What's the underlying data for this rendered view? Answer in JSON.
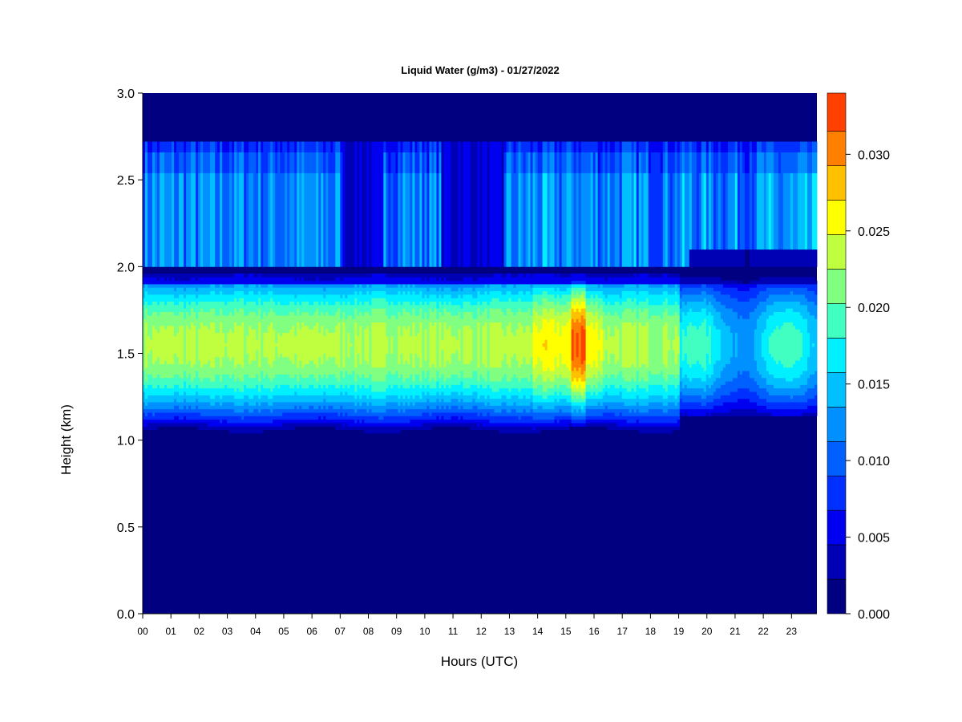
{
  "chart_data": {
    "type": "heatmap",
    "title": "Liquid Water (g/m3) - 01/27/2022",
    "xlabel": "Hours (UTC)",
    "ylabel": "Height (km)",
    "xlim": [
      0,
      23.9
    ],
    "ylim": [
      0.0,
      3.0
    ],
    "x_ticks": [
      "00",
      "01",
      "02",
      "03",
      "04",
      "05",
      "06",
      "07",
      "08",
      "09",
      "10",
      "11",
      "12",
      "13",
      "14",
      "15",
      "16",
      "17",
      "18",
      "19",
      "20",
      "21",
      "22",
      "23"
    ],
    "y_ticks": [
      "0.0",
      "0.5",
      "1.0",
      "1.5",
      "2.0",
      "2.5",
      "3.0"
    ],
    "colorbar": {
      "levels": [
        0.0,
        0.00225,
        0.0045,
        0.00675,
        0.009,
        0.01125,
        0.0135,
        0.01575,
        0.018,
        0.02025,
        0.0225,
        0.02475,
        0.027,
        0.02925,
        0.0315,
        0.034
      ],
      "colors": [
        "#000080",
        "#0000b4",
        "#0000f0",
        "#0030ff",
        "#0060ff",
        "#0090ff",
        "#00c0ff",
        "#00f0ff",
        "#40ffc0",
        "#80ff80",
        "#c0ff40",
        "#ffff00",
        "#ffc000",
        "#ff8000",
        "#ff4000",
        "#ff0000",
        "#c00000",
        "#800000"
      ],
      "tick_labels": [
        "0.000",
        "0.005",
        "0.010",
        "0.015",
        "0.020",
        "0.025",
        "0.030"
      ],
      "tick_values": [
        0.0,
        0.005,
        0.01,
        0.015,
        0.02,
        0.025,
        0.03
      ]
    },
    "features": {
      "upper_layer_km": [
        2.0,
        2.72
      ],
      "upper_layer_value": 0.011,
      "main_layer_km": [
        1.05,
        1.9
      ],
      "main_layer_peak_km": 1.55,
      "main_layer_peak_value": 0.025,
      "max_value_hour": 15.4,
      "max_value": 0.03
    }
  }
}
